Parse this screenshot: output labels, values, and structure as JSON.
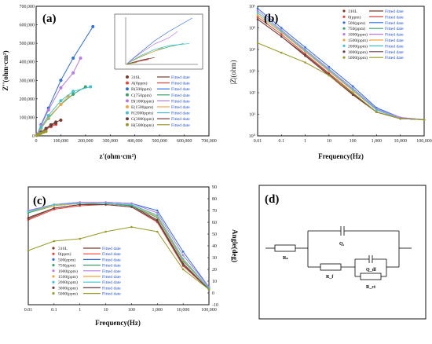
{
  "chart_data": [
    {
      "panel": "(a)",
      "type": "scatter",
      "xlabel": "z'(ohm·cm²)",
      "ylabel": "Z''(ohm·cm²)",
      "xlim": [
        0,
        700000
      ],
      "ylim": [
        0,
        700000
      ],
      "xticks": [
        "0",
        "100,000",
        "200,000",
        "300,000",
        "400,000",
        "500,000",
        "600,000",
        "700,000"
      ],
      "yticks": [
        "0",
        "100,000",
        "200,000",
        "300,000",
        "400,000",
        "500,000",
        "600,000",
        "700,000"
      ],
      "legend": [
        {
          "name": "316L",
          "fit": "Fitted date",
          "color": "#7a3a2a"
        },
        {
          "name": "A(0ppm)",
          "fit": "Fitted date",
          "color": "#e8463a"
        },
        {
          "name": "B(500ppm)",
          "fit": "Fitted date",
          "color": "#2f6fe0"
        },
        {
          "name": "C(750ppm)",
          "fit": "Fitted date",
          "color": "#3aa36a"
        },
        {
          "name": "D(1000ppm)",
          "fit": "Fitted date",
          "color": "#b77ae6"
        },
        {
          "name": "E(1500ppm)",
          "fit": "Fitted date",
          "color": "#f0a640"
        },
        {
          "name": "F(2000ppm)",
          "fit": "Fitted date",
          "color": "#3fc4cf"
        },
        {
          "name": "G(3000ppm)",
          "fit": "Fitted date",
          "color": "#6b4040"
        },
        {
          "name": "H(5000ppm)",
          "fit": "Fitted date",
          "color": "#9a9a2a"
        }
      ],
      "series": [
        {
          "name": "316L",
          "x": [
            5000,
            20000,
            40000,
            60000,
            80000,
            100000
          ],
          "y": [
            5000,
            20000,
            40000,
            60000,
            75000,
            85000
          ]
        },
        {
          "name": "A(0ppm)",
          "x": [
            5000,
            20000,
            40000,
            60000,
            80000
          ],
          "y": [
            5000,
            18000,
            35000,
            50000,
            62000
          ]
        },
        {
          "name": "B(500ppm)",
          "x": [
            5000,
            20000,
            50000,
            100000,
            150000,
            230000
          ],
          "y": [
            10000,
            60000,
            150000,
            300000,
            420000,
            590000
          ]
        },
        {
          "name": "C(750ppm)",
          "x": [
            5000,
            20000,
            50000,
            100000,
            150000,
            200000
          ],
          "y": [
            5000,
            40000,
            95000,
            170000,
            225000,
            265000
          ]
        },
        {
          "name": "D(1000ppm)",
          "x": [
            5000,
            20000,
            50000,
            100000,
            150000,
            180000
          ],
          "y": [
            10000,
            55000,
            140000,
            260000,
            340000,
            420000
          ]
        },
        {
          "name": "E(1500ppm)",
          "x": [
            5000,
            20000,
            50000,
            100000,
            130000
          ],
          "y": [
            5000,
            40000,
            100000,
            170000,
            215000
          ]
        },
        {
          "name": "F(2000ppm)",
          "x": [
            5000,
            20000,
            50000,
            100000,
            150000,
            220000
          ],
          "y": [
            5000,
            45000,
            110000,
            190000,
            240000,
            265000
          ]
        },
        {
          "name": "G(3000ppm)",
          "x": [
            5000,
            20000,
            40000,
            60000,
            80000
          ],
          "y": [
            5000,
            20000,
            40000,
            55000,
            70000
          ]
        },
        {
          "name": "H(5000ppm)",
          "x": [
            2000,
            10000,
            20000,
            30000,
            40000
          ],
          "y": [
            2000,
            8000,
            14000,
            20000,
            24000
          ]
        }
      ]
    },
    {
      "panel": "(b)",
      "type": "line",
      "xlabel": "Frequency(Hz)",
      "ylabel": "|Z|(ohm)",
      "xscale": "log",
      "yscale": "log",
      "xlim": [
        0.01,
        100000
      ],
      "ylim": [
        1,
        1000000
      ],
      "xticks": [
        "0.01",
        "0.1",
        "1",
        "10",
        "100",
        "1,000",
        "10,000",
        "100,000"
      ],
      "yticks": [
        "10⁰",
        "10¹",
        "10²",
        "10³",
        "10⁴",
        "10⁵",
        "10⁶"
      ],
      "legend": [
        {
          "name": "316L",
          "fit": "Fitted date",
          "color": "#7a3a2a"
        },
        {
          "name": "0(ppm)",
          "fit": "Fitted date",
          "color": "#e8463a"
        },
        {
          "name": "500(ppm)",
          "fit": "Fitted date",
          "color": "#2f6fe0"
        },
        {
          "name": "750(ppm)",
          "fit": "Fitted date",
          "color": "#3aa36a"
        },
        {
          "name": "1000(ppm)",
          "fit": "Fitted date",
          "color": "#b77ae6"
        },
        {
          "name": "1500(ppm)",
          "fit": "Fitted date",
          "color": "#f0a640"
        },
        {
          "name": "2000(ppm)",
          "fit": "Fitted date",
          "color": "#3fc4cf"
        },
        {
          "name": "3000(ppm)",
          "fit": "Fitted date",
          "color": "#6b4040"
        },
        {
          "name": "5000(ppm)",
          "fit": "Fitted date",
          "color": "#9a9a2a"
        }
      ],
      "series": [
        {
          "name": "316L",
          "logy_at_logx": [
            [
              -2,
              5.4
            ],
            [
              -1,
              4.6
            ],
            [
              0,
              3.7
            ],
            [
              1,
              2.8
            ],
            [
              2,
              1.9
            ],
            [
              3,
              1.1
            ],
            [
              4,
              0.8
            ],
            [
              5,
              0.75
            ]
          ]
        },
        {
          "name": "0(ppm)",
          "logy_at_logx": [
            [
              -2,
              5.5
            ],
            [
              -1,
              4.7
            ],
            [
              0,
              3.8
            ],
            [
              1,
              2.9
            ],
            [
              2,
              2.0
            ],
            [
              3,
              1.1
            ],
            [
              4,
              0.8
            ],
            [
              5,
              0.75
            ]
          ]
        },
        {
          "name": "500(ppm)",
          "logy_at_logx": [
            [
              -2,
              5.9
            ],
            [
              -1,
              5.0
            ],
            [
              0,
              4.1
            ],
            [
              1,
              3.2
            ],
            [
              2,
              2.3
            ],
            [
              3,
              1.3
            ],
            [
              4,
              0.85
            ],
            [
              5,
              0.75
            ]
          ]
        },
        {
          "name": "750(ppm)",
          "logy_at_logx": [
            [
              -2,
              5.6
            ],
            [
              -1,
              4.8
            ],
            [
              0,
              3.9
            ],
            [
              1,
              3.0
            ],
            [
              2,
              2.1
            ],
            [
              3,
              1.2
            ],
            [
              4,
              0.8
            ],
            [
              5,
              0.75
            ]
          ]
        },
        {
          "name": "1000(ppm)",
          "logy_at_logx": [
            [
              -2,
              5.8
            ],
            [
              -1,
              4.9
            ],
            [
              0,
              4.0
            ],
            [
              1,
              3.1
            ],
            [
              2,
              2.2
            ],
            [
              3,
              1.25
            ],
            [
              4,
              0.85
            ],
            [
              5,
              0.75
            ]
          ]
        },
        {
          "name": "1500(ppm)",
          "logy_at_logx": [
            [
              -2,
              5.6
            ],
            [
              -1,
              4.8
            ],
            [
              0,
              3.9
            ],
            [
              1,
              3.0
            ],
            [
              2,
              2.1
            ],
            [
              3,
              1.2
            ],
            [
              4,
              0.8
            ],
            [
              5,
              0.75
            ]
          ]
        },
        {
          "name": "2000(ppm)",
          "logy_at_logx": [
            [
              -2,
              5.7
            ],
            [
              -1,
              4.85
            ],
            [
              0,
              3.95
            ],
            [
              1,
              3.05
            ],
            [
              2,
              2.15
            ],
            [
              3,
              1.2
            ],
            [
              4,
              0.8
            ],
            [
              5,
              0.75
            ]
          ]
        },
        {
          "name": "3000(ppm)",
          "logy_at_logx": [
            [
              -2,
              5.4
            ],
            [
              -1,
              4.6
            ],
            [
              0,
              3.75
            ],
            [
              1,
              2.85
            ],
            [
              2,
              1.95
            ],
            [
              3,
              1.1
            ],
            [
              4,
              0.8
            ],
            [
              5,
              0.75
            ]
          ]
        },
        {
          "name": "5000(ppm)",
          "logy_at_logx": [
            [
              -2,
              4.3
            ],
            [
              -1,
              3.85
            ],
            [
              0,
              3.4
            ],
            [
              1,
              2.8
            ],
            [
              2,
              2.0
            ],
            [
              3,
              1.1
            ],
            [
              4,
              0.8
            ],
            [
              5,
              0.75
            ]
          ]
        }
      ]
    },
    {
      "panel": "(c)",
      "type": "line",
      "xlabel": "Frequency(Hz)",
      "ylabel": "Angle(deg)",
      "xscale": "log",
      "xlim": [
        0.01,
        100000
      ],
      "ylim": [
        -10,
        90
      ],
      "xticks": [
        "0.01",
        "0.1",
        "1",
        "10",
        "100",
        "1,000",
        "10,000",
        "100,000"
      ],
      "yticks": [
        "-10",
        "0",
        "10",
        "20",
        "30",
        "40",
        "50",
        "60",
        "70",
        "80",
        "90"
      ],
      "legend": [
        {
          "name": "316L",
          "fit": "Fitted date",
          "color": "#7a3a2a"
        },
        {
          "name": "0(ppm)",
          "fit": "Fitted date",
          "color": "#e8463a"
        },
        {
          "name": "500(ppm)",
          "fit": "Fitted date",
          "color": "#2f6fe0"
        },
        {
          "name": "750(ppm)",
          "fit": "Fitted date",
          "color": "#3aa36a"
        },
        {
          "name": "1000(ppm)",
          "fit": "Fitted date",
          "color": "#b77ae6"
        },
        {
          "name": "1500(ppm)",
          "fit": "Fitted date",
          "color": "#f0a640"
        },
        {
          "name": "2000(ppm)",
          "fit": "Fitted date",
          "color": "#3fc4cf"
        },
        {
          "name": "3000(ppm)",
          "fit": "Fitted date",
          "color": "#6b4040"
        },
        {
          "name": "5000(ppm)",
          "fit": "Fitted date",
          "color": "#9a9a2a"
        }
      ],
      "series": [
        {
          "name": "316L",
          "y_at_logx": [
            [
              -2,
              64
            ],
            [
              -1,
              72
            ],
            [
              0,
              75
            ],
            [
              1,
              76
            ],
            [
              2,
              74
            ],
            [
              3,
              62
            ],
            [
              4,
              25
            ],
            [
              5,
              3
            ]
          ]
        },
        {
          "name": "0(ppm)",
          "y_at_logx": [
            [
              -2,
              62
            ],
            [
              -1,
              71
            ],
            [
              0,
              74
            ],
            [
              1,
              75
            ],
            [
              2,
              73
            ],
            [
              3,
              60
            ],
            [
              4,
              23
            ],
            [
              5,
              3
            ]
          ]
        },
        {
          "name": "500(ppm)",
          "y_at_logx": [
            [
              -2,
              70
            ],
            [
              -1,
              75
            ],
            [
              0,
              77
            ],
            [
              1,
              77
            ],
            [
              2,
              76
            ],
            [
              3,
              70
            ],
            [
              4,
              35
            ],
            [
              5,
              5
            ]
          ]
        },
        {
          "name": "750(ppm)",
          "y_at_logx": [
            [
              -2,
              68
            ],
            [
              -1,
              74
            ],
            [
              0,
              76
            ],
            [
              1,
              76
            ],
            [
              2,
              74
            ],
            [
              3,
              64
            ],
            [
              4,
              27
            ],
            [
              5,
              4
            ]
          ]
        },
        {
          "name": "1000(ppm)",
          "y_at_logx": [
            [
              -2,
              70
            ],
            [
              -1,
              75
            ],
            [
              0,
              77
            ],
            [
              1,
              77
            ],
            [
              2,
              76
            ],
            [
              3,
              68
            ],
            [
              4,
              32
            ],
            [
              5,
              5
            ]
          ]
        },
        {
          "name": "1500(ppm)",
          "y_at_logx": [
            [
              -2,
              69
            ],
            [
              -1,
              74
            ],
            [
              0,
              76
            ],
            [
              1,
              76
            ],
            [
              2,
              75
            ],
            [
              3,
              65
            ],
            [
              4,
              28
            ],
            [
              5,
              4
            ]
          ]
        },
        {
          "name": "2000(ppm)",
          "y_at_logx": [
            [
              -2,
              69
            ],
            [
              -1,
              75
            ],
            [
              0,
              76
            ],
            [
              1,
              76
            ],
            [
              2,
              75
            ],
            [
              3,
              66
            ],
            [
              4,
              29
            ],
            [
              5,
              4
            ]
          ]
        },
        {
          "name": "3000(ppm)",
          "y_at_logx": [
            [
              -2,
              63
            ],
            [
              -1,
              72
            ],
            [
              0,
              75
            ],
            [
              1,
              75
            ],
            [
              2,
              73
            ],
            [
              3,
              61
            ],
            [
              4,
              24
            ],
            [
              5,
              3
            ]
          ]
        },
        {
          "name": "5000(ppm)",
          "y_at_logx": [
            [
              -2,
              36
            ],
            [
              -1,
              44
            ],
            [
              0,
              46
            ],
            [
              1,
              52
            ],
            [
              2,
              56
            ],
            [
              3,
              52
            ],
            [
              4,
              20
            ],
            [
              5,
              3
            ]
          ]
        }
      ]
    }
  ],
  "panel_d": {
    "label": "(d)",
    "components": {
      "rs": "Rₛ",
      "q1": "Q₁",
      "rf": "R_f",
      "qdl": "Q_dl",
      "rct": "R_ct"
    }
  }
}
